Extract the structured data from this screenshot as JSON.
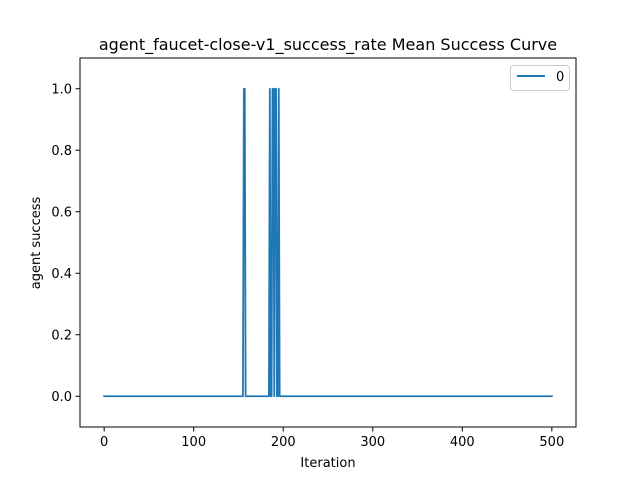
{
  "chart_data": {
    "type": "line",
    "title": "agent_faucet-close-v1_success_rate Mean Success Curve",
    "xlabel": "Iteration",
    "ylabel": "agent success",
    "xlim": [
      -27,
      527
    ],
    "ylim": [
      -0.1,
      1.1
    ],
    "x_ticks": [
      0,
      100,
      200,
      300,
      400,
      500
    ],
    "y_ticks": [
      0.0,
      0.2,
      0.4,
      0.6,
      0.8,
      1.0
    ],
    "x_tick_labels": [
      "0",
      "100",
      "200",
      "300",
      "400",
      "500"
    ],
    "y_tick_labels": [
      "0.0",
      "0.2",
      "0.4",
      "0.6",
      "0.8",
      "1.0"
    ],
    "grid": false,
    "legend": {
      "position": "top-right"
    },
    "series": [
      {
        "name": "0",
        "color": "#1f77b4",
        "x": [
          0,
          155,
          156,
          157,
          158,
          184,
          185,
          186,
          187,
          188,
          189,
          190,
          191,
          192,
          193,
          194,
          195,
          196,
          197,
          500
        ],
        "y": [
          0,
          0,
          1,
          1,
          0,
          0,
          1,
          0,
          0,
          1,
          1,
          0,
          1,
          1,
          0,
          0,
          1,
          0,
          0,
          0
        ]
      }
    ]
  }
}
